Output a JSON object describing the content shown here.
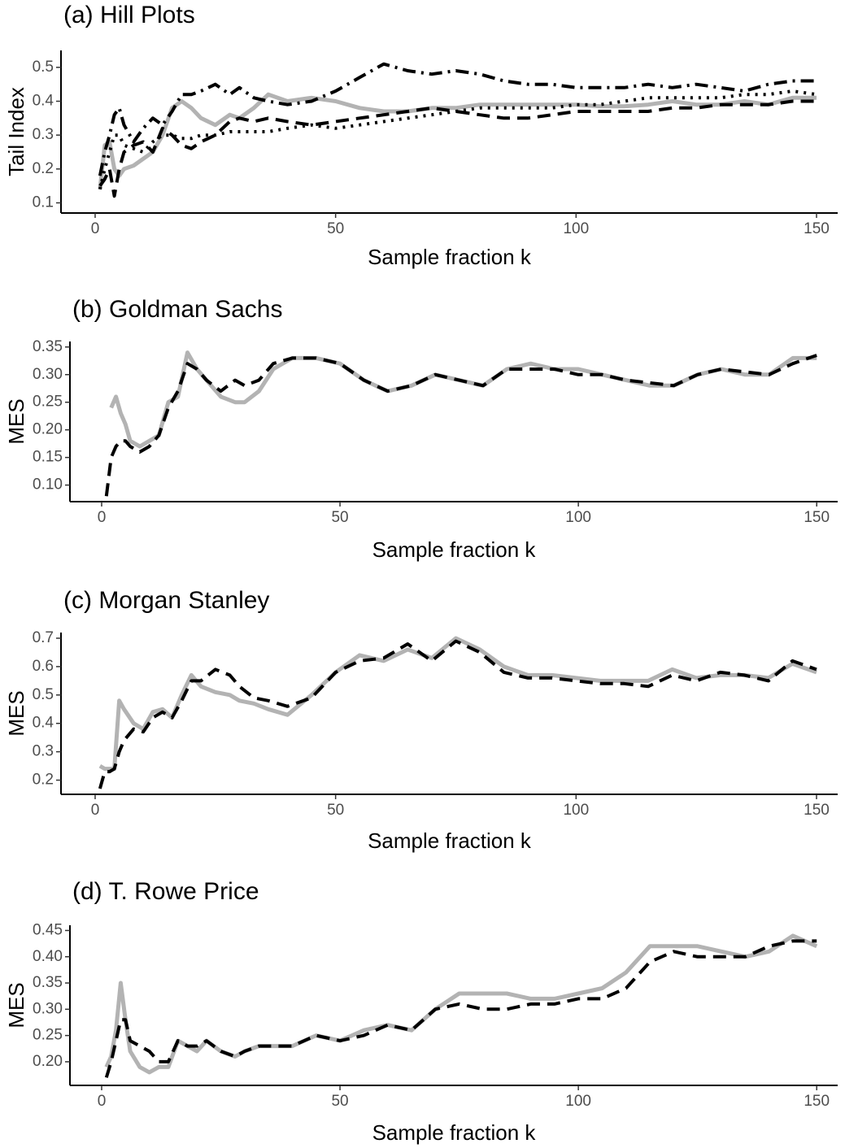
{
  "chart_data": [
    {
      "type": "line",
      "title": "(a) Hill Plots",
      "x_label": "Sample  fraction  k",
      "y_label": "Tail  Index",
      "x": [
        1,
        2,
        3,
        4,
        5,
        6,
        8,
        10,
        12,
        14,
        16,
        18,
        20,
        22,
        25,
        28,
        30,
        33,
        36,
        40,
        45,
        50,
        55,
        60,
        65,
        70,
        75,
        80,
        85,
        90,
        95,
        100,
        105,
        110,
        115,
        120,
        125,
        130,
        135,
        140,
        145,
        150
      ],
      "xlim": [
        -7.1,
        154.4
      ],
      "xticks": [
        0,
        50,
        100,
        150
      ],
      "ylim": [
        0.07,
        0.55
      ],
      "yticks": [
        0.1,
        0.2,
        0.3,
        0.4,
        0.5
      ],
      "series": [
        {
          "color": "#b3b3b3",
          "line_style": "solid",
          "values": [
            0.14,
            0.27,
            0.28,
            0.2,
            0.18,
            0.2,
            0.21,
            0.23,
            0.25,
            0.3,
            0.38,
            0.4,
            0.38,
            0.35,
            0.33,
            0.36,
            0.35,
            0.38,
            0.42,
            0.4,
            0.41,
            0.4,
            0.38,
            0.37,
            0.37,
            0.38,
            0.38,
            0.39,
            0.39,
            0.39,
            0.39,
            0.39,
            0.385,
            0.385,
            0.39,
            0.4,
            0.39,
            0.39,
            0.4,
            0.39,
            0.41,
            0.41
          ]
        },
        {
          "color": "#000000",
          "line_style": "dotdash",
          "values": [
            0.18,
            0.25,
            0.3,
            0.36,
            0.38,
            0.33,
            0.28,
            0.32,
            0.35,
            0.33,
            0.37,
            0.42,
            0.42,
            0.43,
            0.45,
            0.42,
            0.44,
            0.41,
            0.4,
            0.39,
            0.4,
            0.43,
            0.47,
            0.51,
            0.49,
            0.48,
            0.49,
            0.48,
            0.46,
            0.45,
            0.45,
            0.44,
            0.44,
            0.44,
            0.45,
            0.44,
            0.45,
            0.44,
            0.43,
            0.45,
            0.46,
            0.46
          ]
        },
        {
          "color": "#000000",
          "line_style": "dashed",
          "values": [
            0.15,
            0.17,
            0.2,
            0.12,
            0.2,
            0.25,
            0.27,
            0.28,
            0.25,
            0.32,
            0.3,
            0.27,
            0.26,
            0.28,
            0.3,
            0.34,
            0.35,
            0.34,
            0.35,
            0.34,
            0.33,
            0.34,
            0.35,
            0.36,
            0.37,
            0.38,
            0.37,
            0.36,
            0.35,
            0.35,
            0.36,
            0.37,
            0.37,
            0.37,
            0.37,
            0.38,
            0.38,
            0.39,
            0.39,
            0.39,
            0.4,
            0.4
          ]
        },
        {
          "color": "#000000",
          "line_style": "dotted",
          "values": [
            0.14,
            0.2,
            0.25,
            0.3,
            0.3,
            0.27,
            0.26,
            0.25,
            0.28,
            0.3,
            0.3,
            0.29,
            0.29,
            0.3,
            0.3,
            0.31,
            0.31,
            0.31,
            0.31,
            0.32,
            0.33,
            0.32,
            0.33,
            0.34,
            0.35,
            0.36,
            0.37,
            0.38,
            0.38,
            0.38,
            0.38,
            0.39,
            0.39,
            0.4,
            0.41,
            0.41,
            0.41,
            0.41,
            0.42,
            0.42,
            0.43,
            0.42
          ]
        }
      ]
    },
    {
      "type": "line",
      "title": "(b) Goldman Sachs",
      "x_label": "Sample  fraction  k",
      "y_label": "MES",
      "x": [
        1,
        2,
        3,
        4,
        5,
        6,
        8,
        10,
        12,
        14,
        16,
        18,
        20,
        22,
        25,
        28,
        30,
        33,
        36,
        40,
        45,
        50,
        55,
        60,
        65,
        70,
        75,
        80,
        85,
        90,
        95,
        100,
        105,
        110,
        115,
        120,
        125,
        130,
        135,
        140,
        145,
        150
      ],
      "xlim": [
        -6.65,
        154.4
      ],
      "xticks": [
        0,
        50,
        100,
        150
      ],
      "ylim": [
        0.07,
        0.36
      ],
      "yticks": [
        {
          "value": 0.1,
          "label": "0.10"
        },
        0.15,
        {
          "value": 0.2,
          "label": "0.20"
        },
        0.25,
        {
          "value": 0.3,
          "label": "0.30"
        },
        0.35
      ],
      "series": [
        {
          "color": "#b3b3b3",
          "line_style": "solid",
          "values": [
            null,
            0.24,
            0.26,
            0.23,
            0.21,
            0.18,
            0.17,
            0.18,
            0.19,
            0.25,
            0.26,
            0.34,
            0.31,
            0.29,
            0.26,
            0.25,
            0.25,
            0.27,
            0.31,
            0.33,
            0.33,
            0.32,
            0.29,
            0.27,
            0.28,
            0.3,
            0.29,
            0.28,
            0.31,
            0.32,
            0.31,
            0.31,
            0.3,
            0.29,
            0.28,
            0.28,
            0.3,
            0.31,
            0.3,
            0.3,
            0.33,
            0.33
          ]
        },
        {
          "color": "#000000",
          "line_style": "dashed",
          "values": [
            0.08,
            0.15,
            0.17,
            0.18,
            0.18,
            0.17,
            0.16,
            0.17,
            0.19,
            0.24,
            0.27,
            0.32,
            0.31,
            0.29,
            0.27,
            0.29,
            0.28,
            0.29,
            0.32,
            0.33,
            0.33,
            0.32,
            0.29,
            0.27,
            0.28,
            0.3,
            0.29,
            0.28,
            0.31,
            0.31,
            0.31,
            0.3,
            0.3,
            0.29,
            0.285,
            0.28,
            0.3,
            0.31,
            0.305,
            0.3,
            0.32,
            0.335
          ]
        }
      ]
    },
    {
      "type": "line",
      "title": "(c) Morgan Stanley",
      "x_label": "Sample  fraction  k",
      "y_label": "MES",
      "x": [
        1,
        2,
        3,
        4,
        5,
        6,
        8,
        10,
        12,
        14,
        16,
        18,
        20,
        22,
        25,
        28,
        30,
        33,
        36,
        40,
        45,
        50,
        55,
        60,
        65,
        70,
        75,
        80,
        85,
        90,
        95,
        100,
        105,
        110,
        115,
        120,
        125,
        130,
        135,
        140,
        145,
        150
      ],
      "xlim": [
        -7.1,
        154.4
      ],
      "xticks": [
        0,
        50,
        100,
        150
      ],
      "ylim": [
        0.15,
        0.72
      ],
      "yticks": [
        0.2,
        0.3,
        0.4,
        0.5,
        0.6,
        0.7
      ],
      "series": [
        {
          "color": "#b3b3b3",
          "line_style": "solid",
          "values": [
            0.25,
            0.24,
            0.24,
            0.24,
            0.48,
            0.45,
            0.4,
            0.38,
            0.44,
            0.45,
            0.42,
            0.5,
            0.57,
            0.53,
            0.51,
            0.5,
            0.48,
            0.47,
            0.45,
            0.43,
            0.5,
            0.58,
            0.64,
            0.62,
            0.66,
            0.63,
            0.7,
            0.66,
            0.6,
            0.57,
            0.57,
            0.56,
            0.55,
            0.55,
            0.55,
            0.59,
            0.56,
            0.57,
            0.57,
            0.56,
            0.61,
            0.58
          ]
        },
        {
          "color": "#000000",
          "line_style": "dashed",
          "values": [
            0.17,
            0.23,
            0.23,
            0.24,
            0.3,
            0.34,
            0.38,
            0.37,
            0.42,
            0.44,
            0.42,
            0.48,
            0.55,
            0.55,
            0.59,
            0.57,
            0.53,
            0.49,
            0.48,
            0.46,
            0.49,
            0.58,
            0.62,
            0.63,
            0.68,
            0.62,
            0.69,
            0.65,
            0.58,
            0.56,
            0.56,
            0.55,
            0.54,
            0.54,
            0.53,
            0.57,
            0.55,
            0.58,
            0.57,
            0.55,
            0.62,
            0.59
          ]
        }
      ]
    },
    {
      "type": "line",
      "title": "(d) T. Rowe Price",
      "x_label": "Sample  fraction  k",
      "y_label": "MES",
      "x": [
        1,
        2,
        3,
        4,
        5,
        6,
        8,
        10,
        12,
        14,
        16,
        18,
        20,
        22,
        25,
        28,
        30,
        33,
        36,
        40,
        45,
        50,
        55,
        60,
        65,
        70,
        75,
        80,
        85,
        90,
        95,
        100,
        105,
        110,
        115,
        120,
        125,
        130,
        135,
        140,
        145,
        150
      ],
      "xlim": [
        -6.65,
        154.4
      ],
      "xticks": [
        0,
        50,
        100,
        150
      ],
      "ylim": [
        0.155,
        0.46
      ],
      "yticks": [
        {
          "value": 0.2,
          "label": "0.20"
        },
        0.25,
        {
          "value": 0.3,
          "label": "0.30"
        },
        0.35,
        {
          "value": 0.4,
          "label": "0.40"
        },
        0.45
      ],
      "series": [
        {
          "color": "#b3b3b3",
          "line_style": "solid",
          "values": [
            0.19,
            0.21,
            0.26,
            0.35,
            0.28,
            0.22,
            0.19,
            0.18,
            0.19,
            0.19,
            0.24,
            0.23,
            0.22,
            0.24,
            0.22,
            0.21,
            0.22,
            0.23,
            0.23,
            0.23,
            0.25,
            0.24,
            0.26,
            0.27,
            0.26,
            0.3,
            0.33,
            0.33,
            0.33,
            0.32,
            0.32,
            0.33,
            0.34,
            0.37,
            0.42,
            0.42,
            0.42,
            0.41,
            0.4,
            0.41,
            0.44,
            0.42
          ]
        },
        {
          "color": "#000000",
          "line_style": "dashed",
          "values": [
            0.17,
            0.2,
            0.24,
            0.28,
            0.28,
            0.24,
            0.23,
            0.22,
            0.2,
            0.2,
            0.24,
            0.23,
            0.23,
            0.24,
            0.22,
            0.21,
            0.22,
            0.23,
            0.23,
            0.23,
            0.25,
            0.24,
            0.25,
            0.27,
            0.26,
            0.3,
            0.31,
            0.3,
            0.3,
            0.31,
            0.31,
            0.32,
            0.32,
            0.34,
            0.39,
            0.41,
            0.4,
            0.4,
            0.4,
            0.42,
            0.43,
            0.43
          ]
        }
      ]
    }
  ]
}
